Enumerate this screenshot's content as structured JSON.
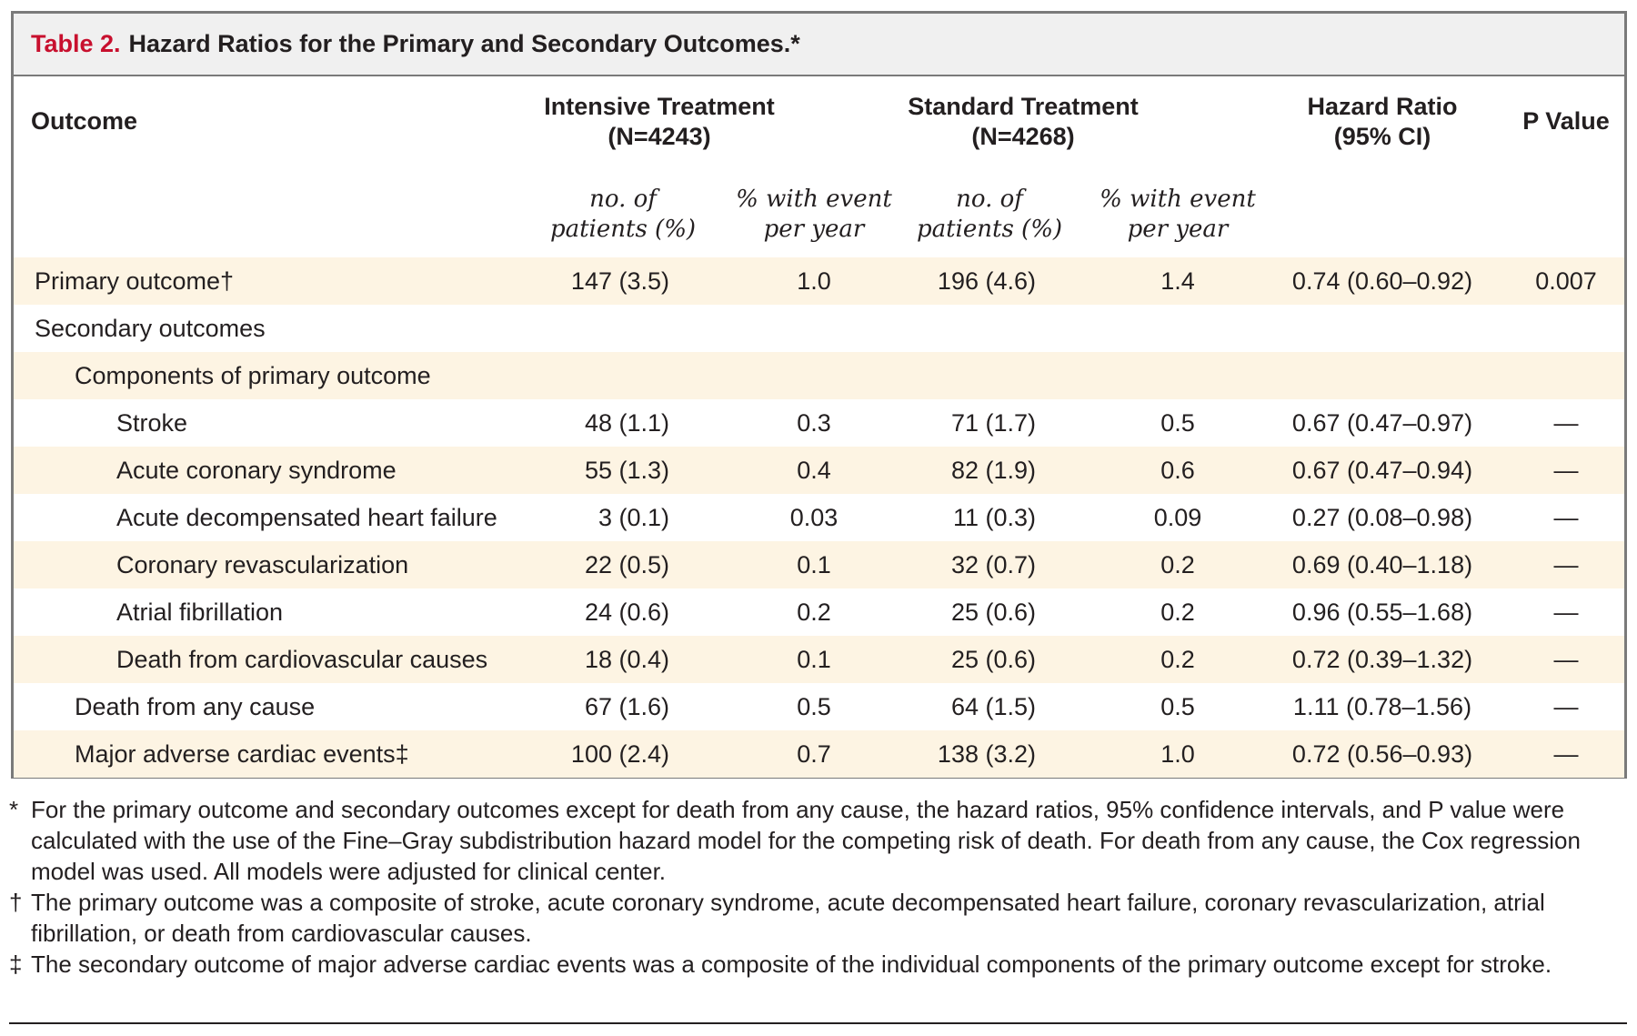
{
  "caption": {
    "label": "Table 2.",
    "title": "Hazard Ratios for the Primary and Secondary Outcomes.*"
  },
  "headers": {
    "outcome": "Outcome",
    "intensive_line1": "Intensive Treatment",
    "intensive_line2": "(N=4243)",
    "standard_line1": "Standard Treatment",
    "standard_line2": "(N=4268)",
    "hr_line1": "Hazard Ratio",
    "hr_line2": "(95% CI)",
    "p_value": "P Value",
    "sub_no_line1": "no. of",
    "sub_no_line2": "patients (%)",
    "sub_pct_line1": "% with event",
    "sub_pct_line2": "per year"
  },
  "rows": [
    {
      "name": "Primary outcome†",
      "int_n": "147 (3.5)",
      "int_pct": "1.0",
      "std_n": "196 (4.6)",
      "std_pct": "1.4",
      "hr": "0.74 (0.60–0.92)",
      "p": "0.007"
    },
    {
      "name": "Secondary outcomes",
      "int_n": "",
      "int_pct": "",
      "std_n": "",
      "std_pct": "",
      "hr": "",
      "p": ""
    },
    {
      "name": "Components of primary outcome",
      "int_n": "",
      "int_pct": "",
      "std_n": "",
      "std_pct": "",
      "hr": "",
      "p": ""
    },
    {
      "name": "Stroke",
      "int_n": "48 (1.1)",
      "int_pct": "0.3",
      "std_n": "71 (1.7)",
      "std_pct": "0.5",
      "hr": "0.67 (0.47–0.97)",
      "p": "—"
    },
    {
      "name": "Acute coronary syndrome",
      "int_n": "55 (1.3)",
      "int_pct": "0.4",
      "std_n": "82 (1.9)",
      "std_pct": "0.6",
      "hr": "0.67 (0.47–0.94)",
      "p": "—"
    },
    {
      "name": "Acute decompensated heart failure",
      "int_n": "3 (0.1)",
      "int_pct": "0.03",
      "std_n": "11 (0.3)",
      "std_pct": "0.09",
      "hr": "0.27 (0.08–0.98)",
      "p": "—"
    },
    {
      "name": "Coronary revascularization",
      "int_n": "22 (0.5)",
      "int_pct": "0.1",
      "std_n": "32 (0.7)",
      "std_pct": "0.2",
      "hr": "0.69 (0.40–1.18)",
      "p": "—"
    },
    {
      "name": "Atrial fibrillation",
      "int_n": "24 (0.6)",
      "int_pct": "0.2",
      "std_n": "25 (0.6)",
      "std_pct": "0.2",
      "hr": "0.96 (0.55–1.68)",
      "p": "—"
    },
    {
      "name": "Death from cardiovascular causes",
      "int_n": "18 (0.4)",
      "int_pct": "0.1",
      "std_n": "25 (0.6)",
      "std_pct": "0.2",
      "hr": "0.72 (0.39–1.32)",
      "p": "—"
    },
    {
      "name": "Death from any cause",
      "int_n": "67 (1.6)",
      "int_pct": "0.5",
      "std_n": "64 (1.5)",
      "std_pct": "0.5",
      "hr": "1.11 (0.78–1.56)",
      "p": "—"
    },
    {
      "name": "Major adverse cardiac events‡",
      "int_n": "100 (2.4)",
      "int_pct": "0.7",
      "std_n": "138 (3.2)",
      "std_pct": "1.0",
      "hr": "0.72 (0.56–0.93)",
      "p": "—"
    }
  ],
  "footnotes": [
    {
      "mark": "*",
      "text": "For the primary outcome and secondary outcomes except for death from any cause, the hazard ratios, 95% confidence intervals, and P value were calculated with the use of the Fine–Gray subdistribution hazard model for the competing risk of death. For death from any cause, the Cox regression model was used. All models were adjusted for clinical center."
    },
    {
      "mark": "†",
      "text": "The primary outcome was a composite of stroke, acute coronary syndrome, acute decompensated heart failure, coronary revascularization, atrial fibrillation, or death from cardiovascular causes."
    },
    {
      "mark": "‡",
      "text": "The secondary outcome of major adverse cardiac events was a composite of the individual components of the primary outcome except for stroke."
    }
  ],
  "colors": {
    "caption_label": "#c8102e",
    "caption_bg": "#f0f0f0",
    "row_shade": "#fdf4e3",
    "border": "#7a7a7a"
  }
}
